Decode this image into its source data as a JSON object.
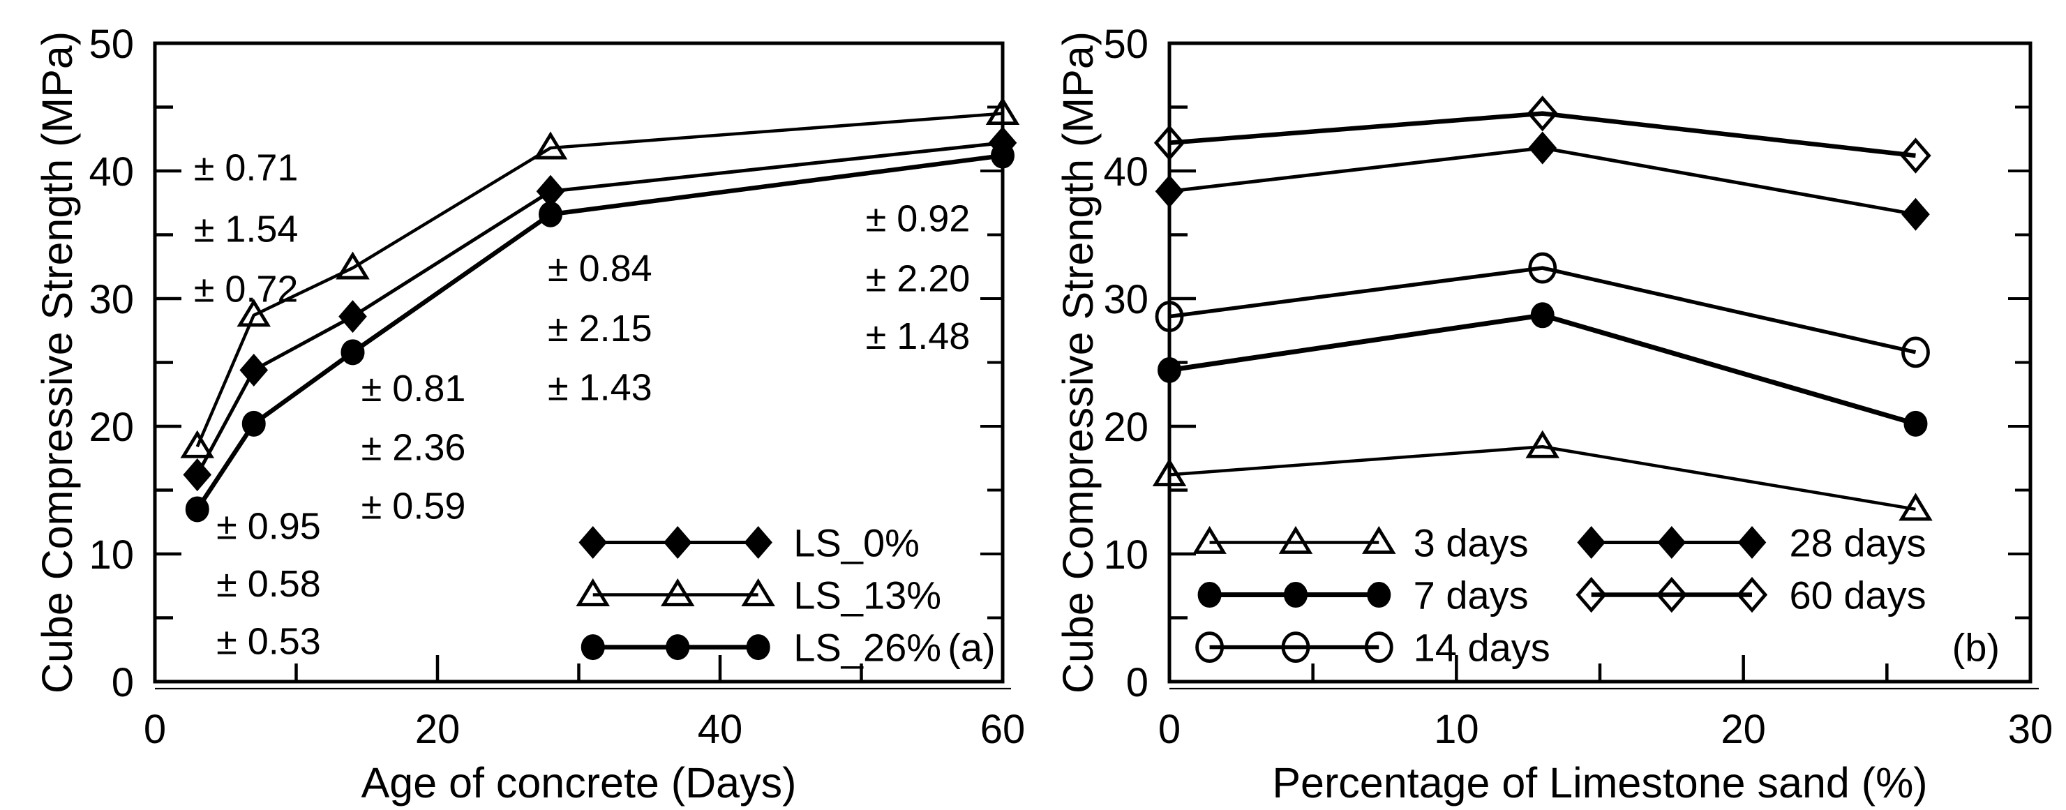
{
  "page": {
    "background": "#ffffff",
    "ink": "#000000"
  },
  "chart_data": [
    {
      "id": "a",
      "type": "line",
      "panel_label": "(a)",
      "xlabel": "Age of concrete (Days)",
      "ylabel": "Cube Compressive Strength (MPa)",
      "xlim": [
        0,
        60
      ],
      "ylim": [
        0,
        50
      ],
      "x_major_ticks": [
        0,
        20,
        40,
        60
      ],
      "x_major_tick_labels": [
        "0",
        "20",
        "40",
        "60"
      ],
      "x_minor_ticks": [
        10,
        30,
        50
      ],
      "y_major_ticks": [
        0,
        10,
        20,
        30,
        40,
        50
      ],
      "y_major_tick_labels": [
        "0",
        "10",
        "20",
        "30",
        "40",
        "50"
      ],
      "y_minor_ticks": [
        5,
        15,
        25,
        35,
        45
      ],
      "grid": false,
      "x": [
        3,
        7,
        14,
        28,
        60
      ],
      "series": [
        {
          "name": "LS_0%",
          "marker": "diamond-filled",
          "linewidth": 5,
          "values": [
            16.2,
            24.4,
            28.6,
            38.4,
            42.2
          ]
        },
        {
          "name": "LS_13%",
          "marker": "triangle-open",
          "linewidth": 4.5,
          "values": [
            18.4,
            28.7,
            32.4,
            41.8,
            44.5
          ]
        },
        {
          "name": "LS_26%",
          "marker": "circle-filled",
          "linewidth": 6.5,
          "values": [
            13.5,
            20.2,
            25.8,
            36.6,
            41.2
          ]
        }
      ],
      "legend": {
        "position": "lower right inside",
        "columns": [
          {
            "marker_x": [
              31.0,
              37.0,
              42.7
            ],
            "label_x": 45.2,
            "entries": [
              {
                "label": "LS_0%",
                "series": 0,
                "row_y": 10.9
              },
              {
                "label": "LS_13%",
                "series": 1,
                "row_y": 6.8
              },
              {
                "label": "LS_26%",
                "series": 2,
                "row_y": 2.7
              }
            ]
          }
        ]
      },
      "panel_label_pos": {
        "x": 57.8,
        "y": 2.7
      },
      "annotations": [
        {
          "text": "± 0.71",
          "x": 2.75,
          "y": 40.3
        },
        {
          "text": "± 1.54",
          "x": 2.75,
          "y": 35.5
        },
        {
          "text": "± 0.72",
          "x": 2.75,
          "y": 30.8
        },
        {
          "text": "± 0.95",
          "x": 4.35,
          "y": 12.2
        },
        {
          "text": "± 0.58",
          "x": 4.35,
          "y": 7.7
        },
        {
          "text": "± 0.53",
          "x": 4.35,
          "y": 3.2
        },
        {
          "text": "± 0.81",
          "x": 14.6,
          "y": 23.0
        },
        {
          "text": "± 2.36",
          "x": 14.6,
          "y": 18.4
        },
        {
          "text": "± 0.59",
          "x": 14.6,
          "y": 13.8
        },
        {
          "text": "± 0.84",
          "x": 27.8,
          "y": 32.4
        },
        {
          "text": "± 2.15",
          "x": 27.8,
          "y": 27.7
        },
        {
          "text": "± 1.43",
          "x": 27.8,
          "y": 23.1
        },
        {
          "text": "± 0.92",
          "x": 50.3,
          "y": 36.3
        },
        {
          "text": "± 2.20",
          "x": 50.3,
          "y": 31.6
        },
        {
          "text": "± 1.48",
          "x": 50.3,
          "y": 27.1
        }
      ]
    },
    {
      "id": "b",
      "type": "line",
      "panel_label": "(b)",
      "xlabel": "Percentage of Limestone sand (%)",
      "ylabel": "Cube Compressive Strength (MPa)",
      "xlim": [
        0,
        30
      ],
      "ylim": [
        0,
        50
      ],
      "x_major_ticks": [
        0,
        10,
        20,
        30
      ],
      "x_major_tick_labels": [
        "0",
        "10",
        "20",
        "30"
      ],
      "x_minor_ticks": [
        5,
        15,
        25
      ],
      "y_major_ticks": [
        0,
        10,
        20,
        30,
        40,
        50
      ],
      "y_major_tick_labels": [
        "0",
        "10",
        "20",
        "30",
        "40",
        "50"
      ],
      "y_minor_ticks": [
        5,
        15,
        25,
        35,
        45
      ],
      "grid": false,
      "x": [
        0,
        13,
        26
      ],
      "series": [
        {
          "name": "3 days",
          "marker": "triangle-open",
          "linewidth": 4.5,
          "values": [
            16.2,
            18.4,
            13.5
          ]
        },
        {
          "name": "7 days",
          "marker": "circle-filled",
          "linewidth": 7,
          "values": [
            24.4,
            28.7,
            20.2
          ]
        },
        {
          "name": "14 days",
          "marker": "circle-open",
          "linewidth": 5.5,
          "values": [
            28.6,
            32.4,
            25.8
          ]
        },
        {
          "name": "28 days",
          "marker": "diamond-filled",
          "linewidth": 5,
          "values": [
            38.4,
            41.8,
            36.6
          ]
        },
        {
          "name": "60 days",
          "marker": "diamond-open",
          "linewidth": 6.5,
          "values": [
            42.2,
            44.5,
            41.2
          ]
        }
      ],
      "legend": {
        "position": "lower left inside, two columns",
        "columns": [
          {
            "marker_x": [
              1.4,
              4.4,
              7.3
            ],
            "label_x": 8.5,
            "entries": [
              {
                "label": "3 days",
                "series": 0,
                "row_y": 10.9
              },
              {
                "label": "7 days",
                "series": 1,
                "row_y": 6.8
              },
              {
                "label": "14 days",
                "series": 2,
                "row_y": 2.7
              }
            ]
          },
          {
            "marker_x": [
              14.7,
              17.5,
              20.3
            ],
            "label_x": 21.6,
            "entries": [
              {
                "label": "28 days",
                "series": 3,
                "row_y": 10.9
              },
              {
                "label": "60 days",
                "series": 4,
                "row_y": 6.8
              }
            ]
          }
        ]
      },
      "panel_label_pos": {
        "x": 28.1,
        "y": 2.7
      },
      "annotations": []
    }
  ]
}
